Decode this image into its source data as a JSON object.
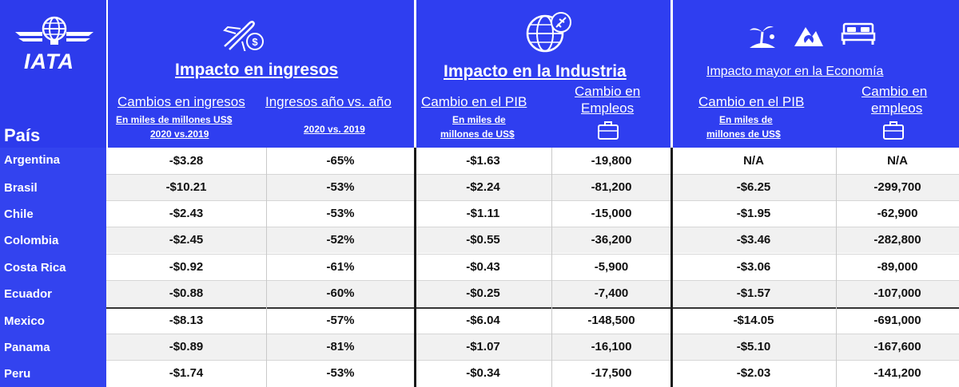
{
  "logo": {
    "text": "IATA"
  },
  "header": {
    "pais": "País",
    "group1": {
      "title": "Impacto en ingresos",
      "col1": {
        "title": "Cambios en ingresos",
        "sub1": "En miles de millones US$",
        "sub2": "2020 vs.2019"
      },
      "col2": {
        "title": "Ingresos año vs. año",
        "sub1": "2020 vs. 2019"
      }
    },
    "group2": {
      "title": "Impacto en la Industria",
      "col1": {
        "title": "Cambio en el PIB",
        "sub1": "En miles de",
        "sub2": "millones de US$"
      },
      "col2": {
        "title1": "Cambio en",
        "title2": "Empleos"
      }
    },
    "group3": {
      "title": "Impacto mayor en la Economía",
      "col1": {
        "title": "Cambio en el PIB",
        "sub1": "En miles de",
        "sub2": "millones de US$"
      },
      "col2": {
        "title1": "Cambio en",
        "title2": "empleos"
      }
    }
  },
  "icons": [
    "airplane-money-icon",
    "globe-plane-icon",
    "beach-icon",
    "mountain-icon",
    "bed-icon",
    "briefcase-icon"
  ],
  "rows": [
    {
      "country": "Argentina",
      "v": [
        "-$3.28",
        "-65%",
        "-$1.63",
        "-19,800",
        "N/A",
        "N/A"
      ]
    },
    {
      "country": "Brasil",
      "v": [
        "-$10.21",
        "-53%",
        "-$2.24",
        "-81,200",
        "-$6.25",
        "-299,700"
      ]
    },
    {
      "country": "Chile",
      "v": [
        "-$2.43",
        "-53%",
        "-$1.11",
        "-15,000",
        "-$1.95",
        "-62,900"
      ]
    },
    {
      "country": "Colombia",
      "v": [
        "-$2.45",
        "-52%",
        "-$0.55",
        "-36,200",
        "-$3.46",
        "-282,800"
      ]
    },
    {
      "country": "Costa Rica",
      "v": [
        "-$0.92",
        "-61%",
        "-$0.43",
        "-5,900",
        "-$3.06",
        "-89,000"
      ]
    },
    {
      "country": "Ecuador",
      "v": [
        "-$0.88",
        "-60%",
        "-$0.25",
        "-7,400",
        "-$1.57",
        "-107,000"
      ]
    },
    {
      "country": "Mexico",
      "v": [
        "-$8.13",
        "-57%",
        "-$6.04",
        "-148,500",
        "-$14.05",
        "-691,000"
      ]
    },
    {
      "country": "Panama",
      "v": [
        "-$0.89",
        "-81%",
        "-$1.07",
        "-16,100",
        "-$5.10",
        "-167,600"
      ]
    },
    {
      "country": "Peru",
      "v": [
        "-$1.74",
        "-53%",
        "-$0.34",
        "-17,500",
        "-$2.03",
        "-141,200"
      ]
    }
  ]
}
